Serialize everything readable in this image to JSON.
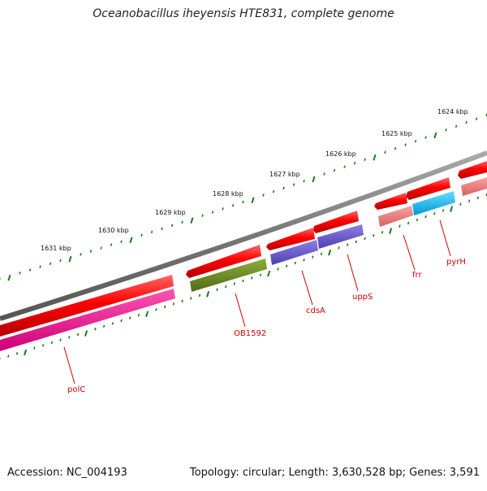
{
  "title": "Oceanobacillus iheyensis HTE831, complete genome",
  "footer": {
    "accession": "Accession: NC_004193",
    "summary": "Topology: circular; Length: 3,630,528 bp; Genes: 3,591"
  },
  "colors": {
    "backbone": "#777777",
    "tick": "#1a7a1a",
    "label_red": "#cc0000",
    "forward_gene": "#ff0000"
  },
  "scale_labels": [
    {
      "text": "1631 kbp"
    },
    {
      "text": "1630 kbp"
    },
    {
      "text": "1629 kbp"
    },
    {
      "text": "1628 kbp"
    },
    {
      "text": "1627 kbp"
    },
    {
      "text": "1626 kbp"
    },
    {
      "text": "1625 kbp"
    },
    {
      "text": "1624 kbp"
    }
  ],
  "gene_labels": [
    {
      "text": "polC",
      "color": "#cc0000"
    },
    {
      "text": "OB1592",
      "color": "#cc0000"
    },
    {
      "text": "cdsA",
      "color": "#cc0000"
    },
    {
      "text": "uppS",
      "color": "#cc0000"
    },
    {
      "text": "frr",
      "color": "#cc0000"
    },
    {
      "text": "pyrH",
      "color": "#cc0000"
    }
  ],
  "feature_colors": {
    "cds_forward": "#ff0000",
    "polC": "#ee1188",
    "OB1592": "#6b8e23",
    "cdsA": "#6a5acd",
    "uppS": "#6a5acd",
    "frr": "#f08080",
    "pyrH": "#00bfff",
    "right_edge": "#f08080"
  }
}
